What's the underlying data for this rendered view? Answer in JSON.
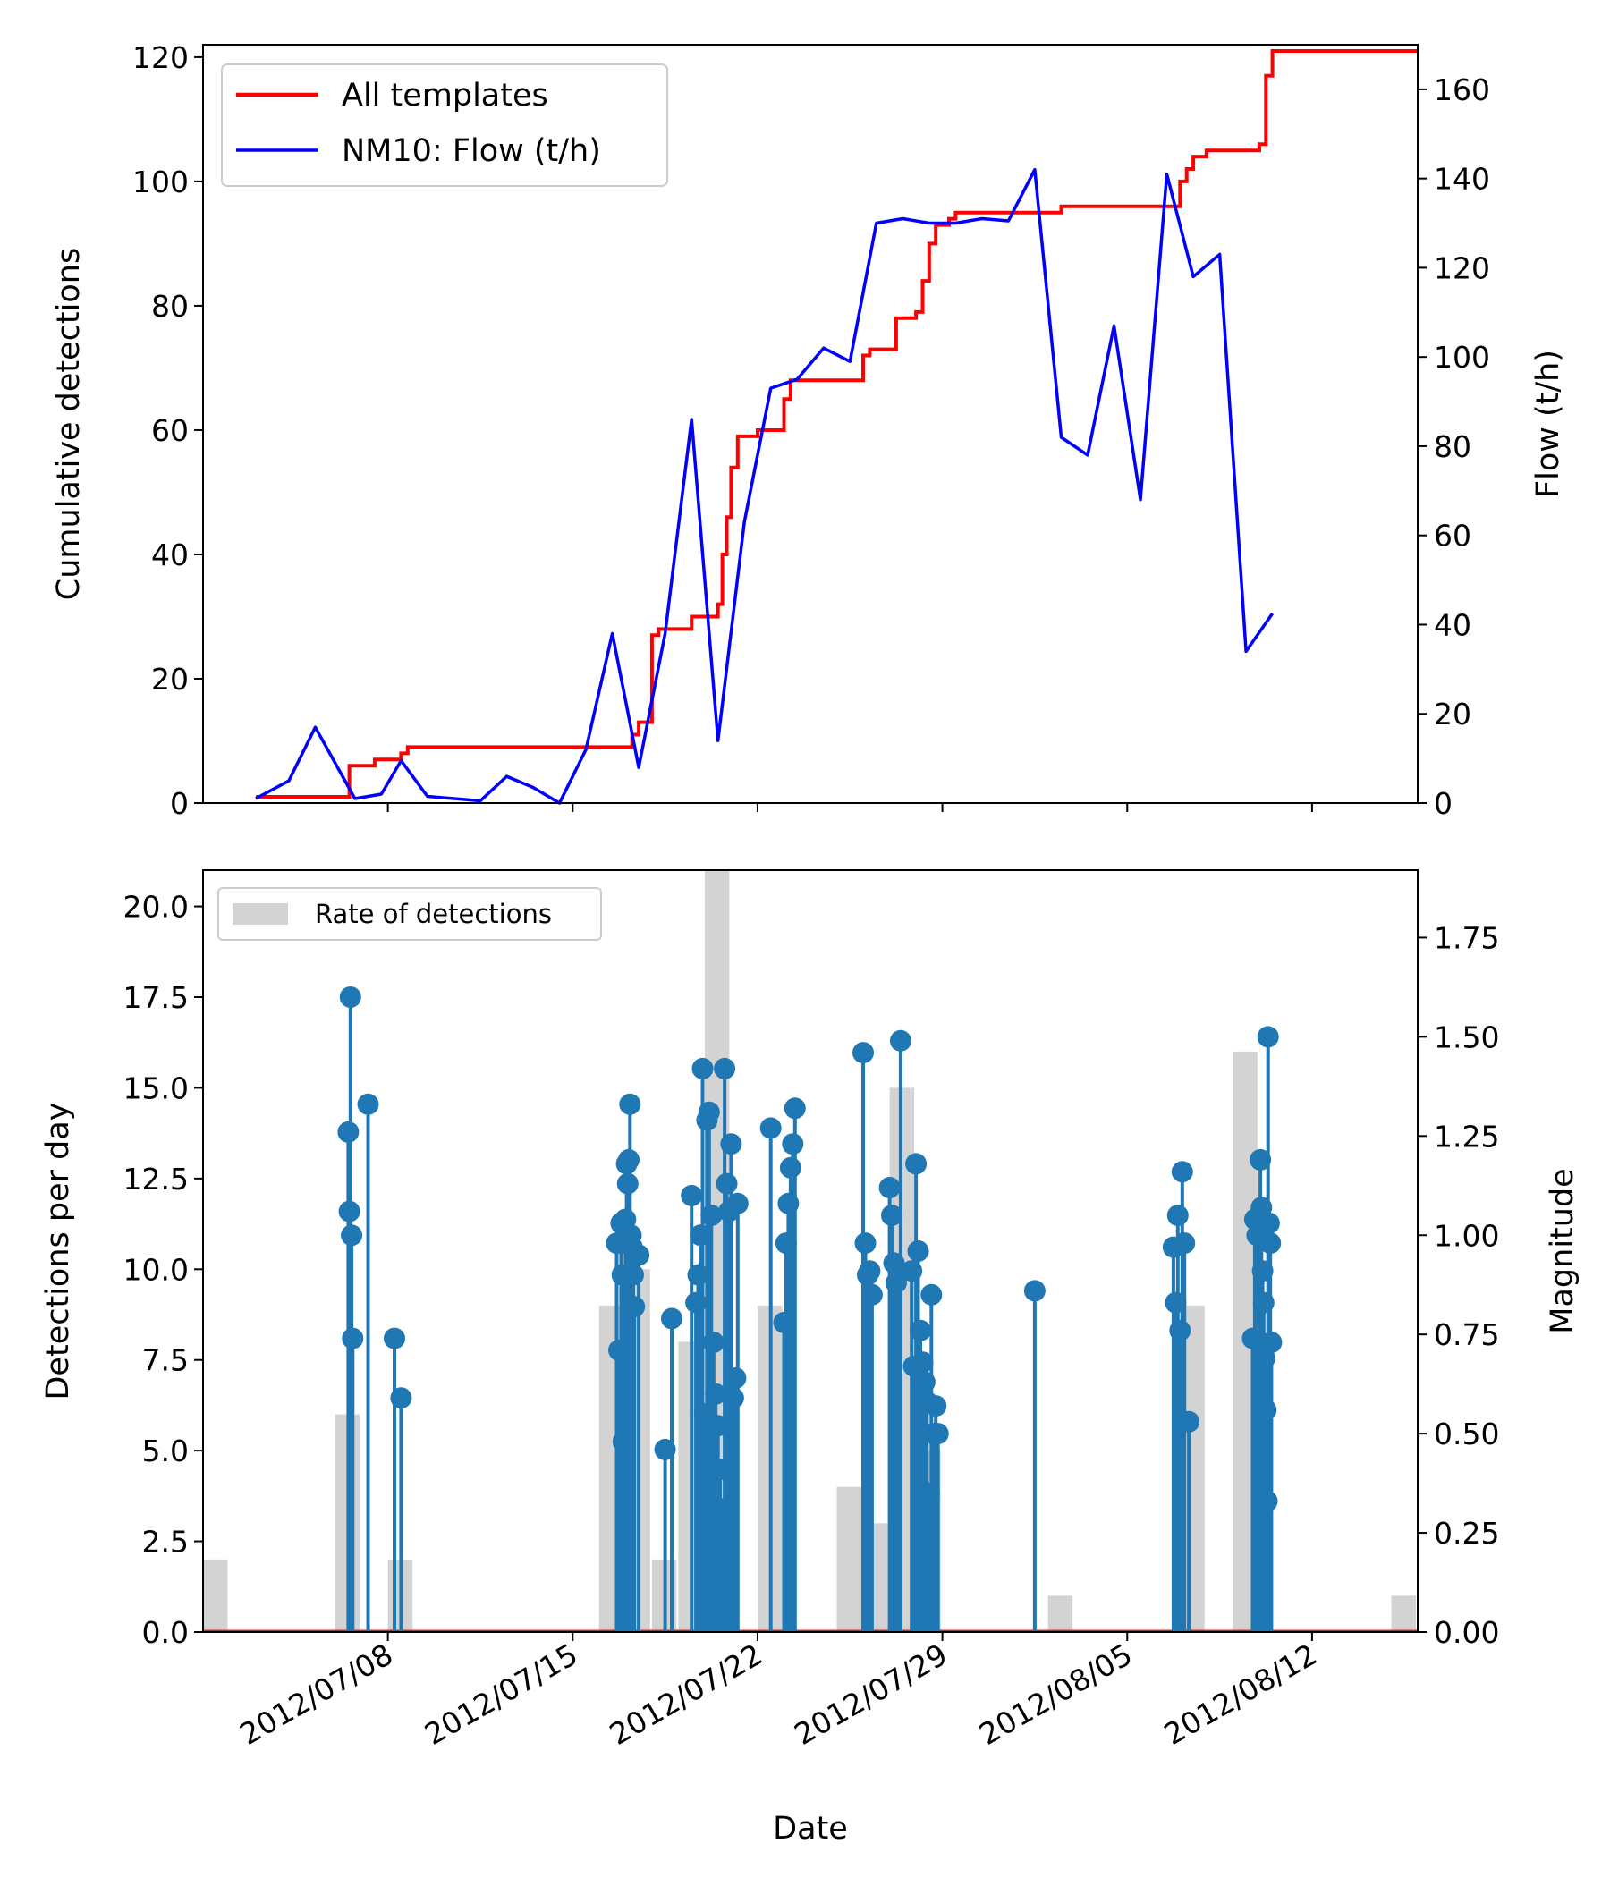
{
  "chart_data": [
    {
      "type": "line",
      "xlim": [
        "2012-07-01",
        "2012-08-16"
      ],
      "xticks": [
        "2012-07-08",
        "2012-07-15",
        "2012-07-22",
        "2012-07-29",
        "2012-08-05",
        "2012-08-12"
      ],
      "ylabel": "Cumulative detections",
      "ylim": [
        0,
        122
      ],
      "yticks": [
        "0",
        "20",
        "40",
        "60",
        "80",
        "100",
        "120"
      ],
      "y2label": "Flow (t/h)",
      "y2lim": [
        0,
        170
      ],
      "y2ticks": [
        "0",
        "20",
        "40",
        "60",
        "80",
        "100",
        "120",
        "140",
        "160"
      ],
      "legend_position": "upper-left",
      "colors": {
        "cumulative": "#ff0000",
        "flow": "#0000ff"
      },
      "series": [
        {
          "name": "All templates",
          "axis": "left",
          "step": true,
          "points": [
            [
              "2012-07-03 00:00",
              1
            ],
            [
              "2012-07-06 12:00",
              1
            ],
            [
              "2012-07-06 13:00",
              6
            ],
            [
              "2012-07-07 12:00",
              7
            ],
            [
              "2012-07-08 12:00",
              8
            ],
            [
              "2012-07-08 18:00",
              9
            ],
            [
              "2012-07-17 00:00",
              9
            ],
            [
              "2012-07-17 06:00",
              11
            ],
            [
              "2012-07-17 12:00",
              13
            ],
            [
              "2012-07-18 00:00",
              27
            ],
            [
              "2012-07-18 06:00",
              28
            ],
            [
              "2012-07-19 12:00",
              30
            ],
            [
              "2012-07-20 12:00",
              32
            ],
            [
              "2012-07-20 16:00",
              40
            ],
            [
              "2012-07-20 20:00",
              46
            ],
            [
              "2012-07-21 00:00",
              54
            ],
            [
              "2012-07-21 06:00",
              59
            ],
            [
              "2012-07-22 00:00",
              60
            ],
            [
              "2012-07-23 00:00",
              65
            ],
            [
              "2012-07-23 06:00",
              68
            ],
            [
              "2012-07-25 18:00",
              68
            ],
            [
              "2012-07-26 00:00",
              72
            ],
            [
              "2012-07-26 06:00",
              73
            ],
            [
              "2012-07-27 06:00",
              78
            ],
            [
              "2012-07-28 00:00",
              79
            ],
            [
              "2012-07-28 06:00",
              84
            ],
            [
              "2012-07-28 12:00",
              90
            ],
            [
              "2012-07-28 18:00",
              93
            ],
            [
              "2012-07-29 06:00",
              94
            ],
            [
              "2012-07-29 12:00",
              95
            ],
            [
              "2012-08-02 06:00",
              95
            ],
            [
              "2012-08-02 12:00",
              96
            ],
            [
              "2012-08-06 18:00",
              96
            ],
            [
              "2012-08-07 00:00",
              100
            ],
            [
              "2012-08-07 06:00",
              102
            ],
            [
              "2012-08-07 12:00",
              104
            ],
            [
              "2012-08-08 00:00",
              105
            ],
            [
              "2012-08-09 18:00",
              105
            ],
            [
              "2012-08-10 00:00",
              106
            ],
            [
              "2012-08-10 06:00",
              117
            ],
            [
              "2012-08-10 12:00",
              121
            ],
            [
              "2012-08-16 00:00",
              121
            ]
          ]
        },
        {
          "name": "NM10: Flow (t/h)",
          "axis": "right",
          "step": false,
          "points": [
            [
              "2012-07-03 00:00",
              1
            ],
            [
              "2012-07-04 06:00",
              5
            ],
            [
              "2012-07-05 06:00",
              17
            ],
            [
              "2012-07-06 18:00",
              1
            ],
            [
              "2012-07-07 18:00",
              2
            ],
            [
              "2012-07-08 12:00",
              9.5
            ],
            [
              "2012-07-09 12:00",
              1.5
            ],
            [
              "2012-07-10 12:00",
              1
            ],
            [
              "2012-07-11 12:00",
              0.5
            ],
            [
              "2012-07-12 12:00",
              6
            ],
            [
              "2012-07-13 12:00",
              3.5
            ],
            [
              "2012-07-14 12:00",
              0
            ],
            [
              "2012-07-15 12:00",
              12
            ],
            [
              "2012-07-16 12:00",
              38
            ],
            [
              "2012-07-17 12:00",
              8
            ],
            [
              "2012-07-18 12:00",
              38
            ],
            [
              "2012-07-19 12:00",
              86
            ],
            [
              "2012-07-20 12:00",
              14
            ],
            [
              "2012-07-21 12:00",
              63
            ],
            [
              "2012-07-22 12:00",
              93
            ],
            [
              "2012-07-23 12:00",
              95
            ],
            [
              "2012-07-24 12:00",
              102
            ],
            [
              "2012-07-25 12:00",
              99
            ],
            [
              "2012-07-26 12:00",
              130
            ],
            [
              "2012-07-27 12:00",
              131
            ],
            [
              "2012-07-28 12:00",
              130
            ],
            [
              "2012-07-29 12:00",
              130
            ],
            [
              "2012-07-30 12:00",
              131
            ],
            [
              "2012-07-31 12:00",
              130.5
            ],
            [
              "2012-08-01 12:00",
              142
            ],
            [
              "2012-08-02 12:00",
              82
            ],
            [
              "2012-08-03 12:00",
              78
            ],
            [
              "2012-08-04 12:00",
              107
            ],
            [
              "2012-08-05 12:00",
              68
            ],
            [
              "2012-08-06 12:00",
              141
            ],
            [
              "2012-08-07 12:00",
              118
            ],
            [
              "2012-08-08 12:00",
              123
            ],
            [
              "2012-08-09 12:00",
              34
            ],
            [
              "2012-08-10 12:00",
              42.5
            ]
          ]
        }
      ]
    },
    {
      "type": "bar",
      "xlabel": "Date",
      "xlim": [
        "2012-07-01",
        "2012-08-16"
      ],
      "xticks": [
        "2012-07-08",
        "2012-07-15",
        "2012-07-22",
        "2012-07-29",
        "2012-08-05",
        "2012-08-12"
      ],
      "xticklabels": [
        "2012/07/08",
        "2012/07/15",
        "2012/07/22",
        "2012/07/29",
        "2012/08/05",
        "2012/08/12"
      ],
      "ylabel": "Detections per day",
      "ylim": [
        0,
        21
      ],
      "yticks": [
        "0.0",
        "2.5",
        "5.0",
        "7.5",
        "10.0",
        "12.5",
        "15.0",
        "17.5",
        "20.0"
      ],
      "y2label": "Magnitude",
      "y2lim": [
        0,
        1.92
      ],
      "y2ticks": [
        "0.00",
        "0.25",
        "0.50",
        "0.75",
        "1.00",
        "1.25",
        "1.50",
        "1.75"
      ],
      "legend_position": "upper-left",
      "colors": {
        "bars": "#d3d3d3",
        "stems": "#1f77b4",
        "baseline": "#d62728"
      },
      "bars": {
        "name": "Rate of detections",
        "days": [
          "2012-07-01",
          "2012-07-06",
          "2012-07-07",
          "2012-07-08",
          "2012-07-16",
          "2012-07-17",
          "2012-07-18",
          "2012-07-19",
          "2012-07-20",
          "2012-07-21",
          "2012-07-22",
          "2012-07-23",
          "2012-07-25",
          "2012-07-26",
          "2012-07-27",
          "2012-07-28",
          "2012-08-02",
          "2012-08-07",
          "2012-08-09",
          "2012-08-15"
        ],
        "values": [
          2,
          6,
          0,
          2,
          9,
          10,
          2,
          8,
          21,
          0,
          9,
          0,
          4,
          3,
          15,
          5,
          1,
          9,
          16,
          1
        ]
      },
      "stems": {
        "times": [
          "2012-07-06 12:00",
          "2012-07-06 13:00",
          "2012-07-06 14:00",
          "2012-07-06 15:00",
          "2012-07-06 16:00",
          "2012-07-07 06:00",
          "2012-07-08 06:00",
          "2012-07-08 12:00",
          "2012-07-16 16:00",
          "2012-07-16 18:00",
          "2012-07-16 20:00",
          "2012-07-16 21:00",
          "2012-07-16 22:00",
          "2012-07-17 00:00",
          "2012-07-17 01:00",
          "2012-07-17 02:00",
          "2012-07-17 03:00",
          "2012-07-17 04:00",
          "2012-07-17 05:00",
          "2012-07-17 06:00",
          "2012-07-17 07:00",
          "2012-07-17 08:00",
          "2012-07-17 12:00",
          "2012-07-18 12:00",
          "2012-07-18 18:00",
          "2012-07-19 12:00",
          "2012-07-19 16:00",
          "2012-07-19 18:00",
          "2012-07-19 20:00",
          "2012-07-19 22:00",
          "2012-07-20 00:00",
          "2012-07-20 02:00",
          "2012-07-20 04:00",
          "2012-07-20 06:00",
          "2012-07-20 08:00",
          "2012-07-20 10:00",
          "2012-07-20 12:00",
          "2012-07-20 14:00",
          "2012-07-20 16:00",
          "2012-07-20 18:00",
          "2012-07-20 20:00",
          "2012-07-20 22:00",
          "2012-07-21 00:00",
          "2012-07-21 02:00",
          "2012-07-21 04:00",
          "2012-07-21 06:00",
          "2012-07-22 12:00",
          "2012-07-23 00:00",
          "2012-07-23 02:00",
          "2012-07-23 04:00",
          "2012-07-23 06:00",
          "2012-07-23 08:00",
          "2012-07-23 10:00",
          "2012-07-26 00:00",
          "2012-07-26 02:00",
          "2012-07-26 04:00",
          "2012-07-26 06:00",
          "2012-07-26 08:00",
          "2012-07-27 00:00",
          "2012-07-27 02:00",
          "2012-07-27 04:00",
          "2012-07-27 06:00",
          "2012-07-27 08:00",
          "2012-07-27 10:00",
          "2012-07-27 20:00",
          "2012-07-27 22:00",
          "2012-07-28 00:00",
          "2012-07-28 02:00",
          "2012-07-28 04:00",
          "2012-07-28 06:00",
          "2012-07-28 08:00",
          "2012-07-28 10:00",
          "2012-07-28 12:00",
          "2012-07-28 14:00",
          "2012-07-28 16:00",
          "2012-07-28 18:00",
          "2012-07-28 20:00",
          "2012-08-01 12:00",
          "2012-08-06 18:00",
          "2012-08-06 20:00",
          "2012-08-06 22:00",
          "2012-08-07 00:00",
          "2012-08-07 02:00",
          "2012-08-07 04:00",
          "2012-08-07 08:00",
          "2012-08-09 18:00",
          "2012-08-09 20:00",
          "2012-08-09 22:00",
          "2012-08-10 00:00",
          "2012-08-10 01:00",
          "2012-08-10 02:00",
          "2012-08-10 03:00",
          "2012-08-10 04:00",
          "2012-08-10 05:00",
          "2012-08-10 06:00",
          "2012-08-10 07:00",
          "2012-08-10 08:00",
          "2012-08-10 09:00",
          "2012-08-10 10:00",
          "2012-08-10 11:00"
        ],
        "magnitudes": [
          1.26,
          1.06,
          1.6,
          1.0,
          0.74,
          1.33,
          0.74,
          0.59,
          0.98,
          0.71,
          1.03,
          0.9,
          0.48,
          1.04,
          1.18,
          1.13,
          1.19,
          1.33,
          1.0,
          0.97,
          0.9,
          0.82,
          0.95,
          0.46,
          0.79,
          1.1,
          0.83,
          0.9,
          1.0,
          1.42,
          0.55,
          1.29,
          1.31,
          1.05,
          0.73,
          0.6,
          0.52,
          0.41,
          0.31,
          1.42,
          1.13,
          1.06,
          1.23,
          0.59,
          0.64,
          1.08,
          1.27,
          0.78,
          0.98,
          1.08,
          1.17,
          1.23,
          1.32,
          1.46,
          0.98,
          0.9,
          0.91,
          0.85,
          1.12,
          1.05,
          0.93,
          0.88,
          0.91,
          1.49,
          0.91,
          0.67,
          1.18,
          0.96,
          0.76,
          0.68,
          0.63,
          0.58,
          0.35,
          0.85,
          0.5,
          0.57,
          0.5,
          0.86,
          0.97,
          0.83,
          1.05,
          0.76,
          1.16,
          0.98,
          0.53,
          0.74,
          1.04,
          1.0,
          1.05,
          1.19,
          1.07,
          0.91,
          0.83,
          0.69,
          0.56,
          0.33,
          1.5,
          1.03,
          0.98,
          0.73
        ]
      }
    }
  ]
}
